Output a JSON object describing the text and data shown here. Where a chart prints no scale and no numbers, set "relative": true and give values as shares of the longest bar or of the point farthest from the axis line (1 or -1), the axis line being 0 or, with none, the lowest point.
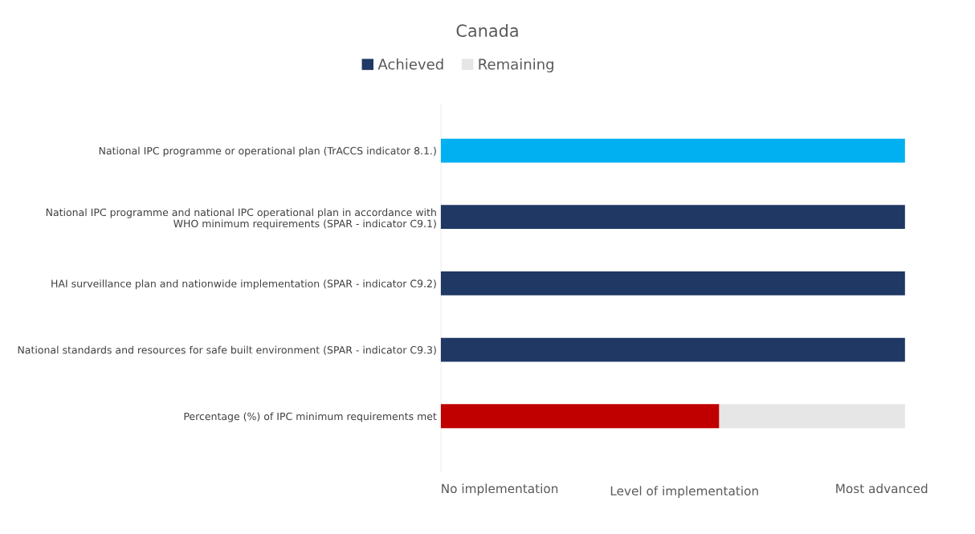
{
  "chart_data": {
    "type": "bar",
    "orientation": "horizontal",
    "stacked": true,
    "title": "Canada",
    "xlabel": "Level of implementation",
    "categories": [
      "National IPC programme or operational plan (TrACCS indicator 8.1.)",
      "National IPC programme and national IPC operational plan in accordance with\nWHO minimum requirements (SPAR - indicator C9.1)",
      "HAI surveillance plan and nationwide implementation (SPAR - indicator C9.2)",
      "National standards and resources for safe built environment (SPAR - indicator C9.3)",
      "Percentage (%) of IPC minimum requirements met"
    ],
    "series": [
      {
        "name": "Achieved",
        "color": "#203864",
        "colors": [
          "#00b0f0",
          "#203864",
          "#203864",
          "#203864",
          "#c00000"
        ],
        "values": [
          1,
          1,
          1,
          1,
          0.6
        ]
      },
      {
        "name": "Remaining",
        "color": "#e7e6e6",
        "values": [
          null,
          null,
          null,
          null,
          0.4
        ]
      }
    ],
    "relative": true,
    "annotations": [
      "No implementation",
      "Most advanced"
    ],
    "legend": "top"
  }
}
